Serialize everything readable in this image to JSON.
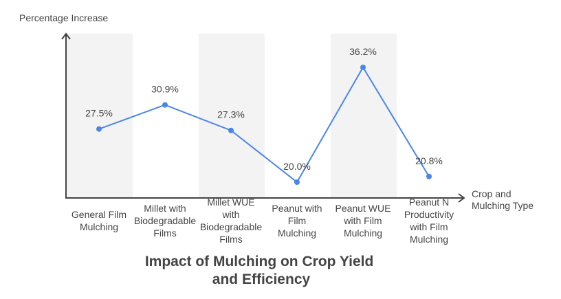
{
  "chart_data": {
    "type": "line",
    "title": "Impact of Mulching on Crop Yield and Efficiency",
    "title_lines": [
      "Impact of Mulching on Crop Yield",
      "and Efficiency"
    ],
    "ylabel": "Percentage Increase",
    "xlabel": "Crop and Mulching Type",
    "xlabel_lines": [
      "Crop and",
      "Mulching Type"
    ],
    "categories": [
      "General Film Mulching",
      "Millet with Biodegradable Films",
      "Millet WUE with Biodegradable Films",
      "Peanut with Film Mulching",
      "Peanut WUE with Film Mulching",
      "Peanut N Productivity with Film Mulching"
    ],
    "category_lines": [
      [
        "General Film",
        "Mulching"
      ],
      [
        "Millet with",
        "Biodegradable",
        "Films"
      ],
      [
        "Millet WUE",
        "with",
        "Biodegradable",
        "Films"
      ],
      [
        "Peanut with",
        "Film",
        "Mulching"
      ],
      [
        "Peanut WUE",
        "with Film",
        "Mulching"
      ],
      [
        "Peanut N",
        "Productivity",
        "with Film",
        "Mulching"
      ]
    ],
    "series": [
      {
        "name": "Percentage Increase",
        "values": [
          27.5,
          30.9,
          27.3,
          20.0,
          36.2,
          20.8
        ],
        "color": "#4a86e8"
      }
    ],
    "data_labels": [
      "27.5%",
      "30.9%",
      "27.3%",
      "20.0%",
      "36.2%",
      "20.8%"
    ],
    "grid": false,
    "legend": "none",
    "colors": {
      "band": "#f3f3f3",
      "axis": "#444444",
      "line": "#4a86e8"
    }
  }
}
